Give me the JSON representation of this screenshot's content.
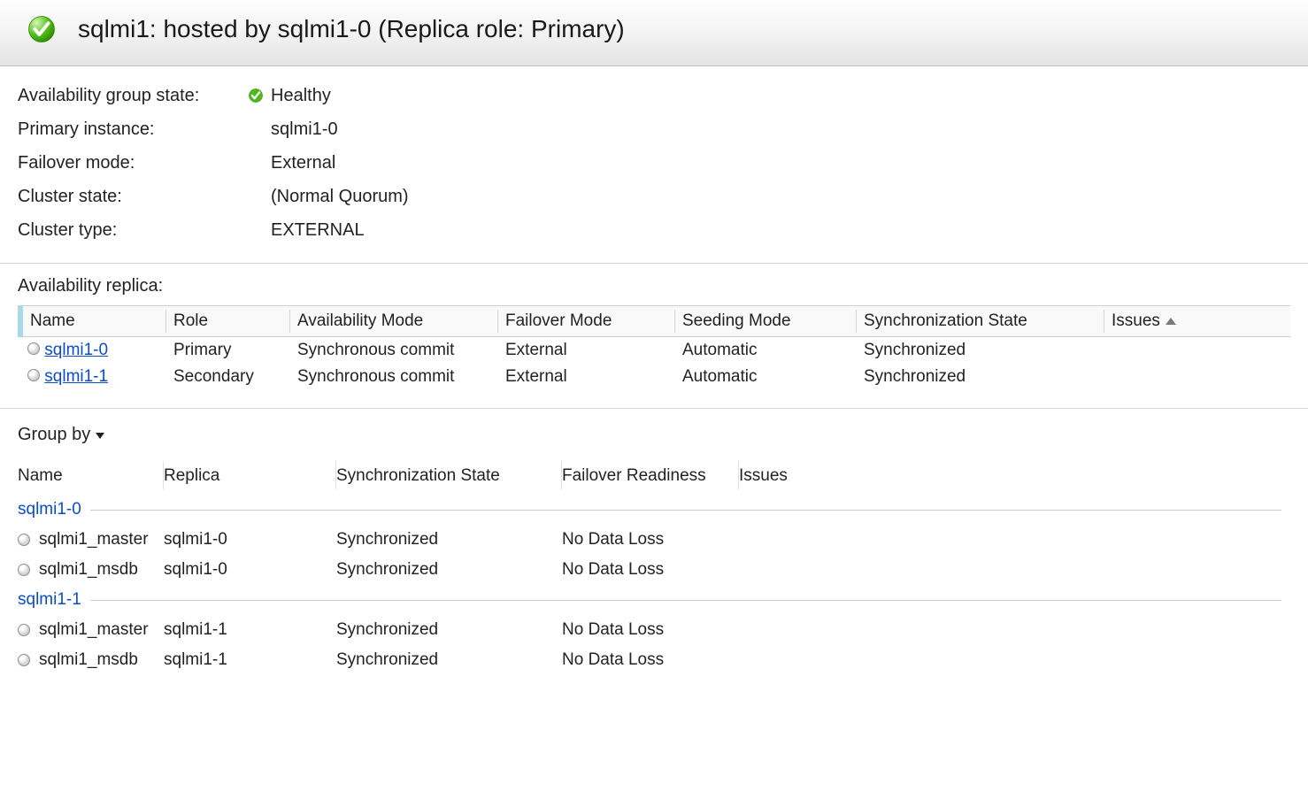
{
  "colors": {
    "link": "#0b4cce",
    "header_gradient_top": "#ffffff",
    "header_gradient_bottom": "#e3e3e3",
    "border": "#cfcfcf"
  },
  "header": {
    "title": "sqlmi1: hosted by sqlmi1-0 (Replica role: Primary)"
  },
  "state": {
    "rows": [
      {
        "label": "Availability group state:",
        "icon": true,
        "value": "Healthy"
      },
      {
        "label": "Primary instance:",
        "icon": false,
        "value": "sqlmi1-0"
      },
      {
        "label": "Failover mode:",
        "icon": false,
        "value": "External"
      },
      {
        "label": "Cluster state:",
        "icon": false,
        "value": " (Normal Quorum)"
      },
      {
        "label": "Cluster type:",
        "icon": false,
        "value": "EXTERNAL"
      }
    ]
  },
  "replica": {
    "title": "Availability replica:",
    "columns": [
      "Name",
      "Role",
      "Availability Mode",
      "Failover Mode",
      "Seeding Mode",
      "Synchronization State",
      "Issues"
    ],
    "sort_col_index": 6,
    "rows": [
      {
        "name": "sqlmi1-0",
        "role": "Primary",
        "amode": "Synchronous commit",
        "fmode": "External",
        "smode": "Automatic",
        "sstate": "Synchronized",
        "issues": ""
      },
      {
        "name": "sqlmi1-1",
        "role": "Secondary",
        "amode": "Synchronous commit",
        "fmode": "External",
        "smode": "Automatic",
        "sstate": "Synchronized",
        "issues": ""
      }
    ]
  },
  "db": {
    "groupby_label": "Group by",
    "columns": [
      "Name",
      "Replica",
      "Synchronization State",
      "Failover Readiness",
      "Issues"
    ],
    "groups": [
      {
        "name": "sqlmi1-0",
        "rows": [
          {
            "name": "sqlmi1_master",
            "replica": "sqlmi1-0",
            "sync": "Synchronized",
            "fo": "No Data Loss",
            "issues": ""
          },
          {
            "name": "sqlmi1_msdb",
            "replica": "sqlmi1-0",
            "sync": "Synchronized",
            "fo": "No Data Loss",
            "issues": ""
          }
        ]
      },
      {
        "name": "sqlmi1-1",
        "rows": [
          {
            "name": "sqlmi1_master",
            "replica": "sqlmi1-1",
            "sync": "Synchronized",
            "fo": "No Data Loss",
            "issues": ""
          },
          {
            "name": "sqlmi1_msdb",
            "replica": "sqlmi1-1",
            "sync": "Synchronized",
            "fo": "No Data Loss",
            "issues": ""
          }
        ]
      }
    ]
  }
}
